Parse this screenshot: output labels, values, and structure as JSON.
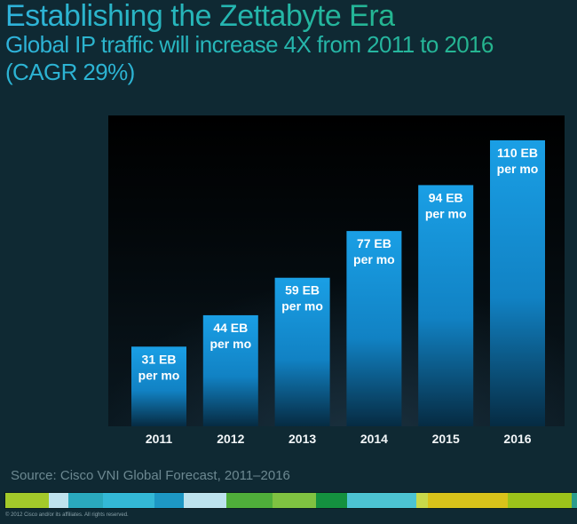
{
  "slide": {
    "title": "Establishing the Zettabyte Era",
    "subtitle_line1": "Global IP traffic will increase 4X from 2011 to 2016",
    "subtitle_line2": "(CAGR 29%)",
    "source": "Source: Cisco VNI Global Forecast, 2011–2016",
    "copyright": "© 2012 Cisco and/or its affiliates. All rights reserved."
  },
  "colors": {
    "background": "#0f2933",
    "bar_top": "#1aa0e6",
    "bar_bottom": "#06304a",
    "label_text": "#ffffff",
    "footer_stripe": [
      "#a3c92a",
      "#bfe3ee",
      "#2aa9bd",
      "#33b8d6",
      "#1d97c4",
      "#bde3ee",
      "#4fae3a",
      "#7fc241",
      "#14913f",
      "#4cc3d2",
      "#c8d84a",
      "#d8c21a",
      "#9cc21a",
      "#2a9c8c"
    ]
  },
  "chart_data": {
    "type": "bar",
    "title": "Global IP traffic",
    "xlabel": "",
    "ylabel": "",
    "unit": "EB per mo",
    "categories": [
      "2011",
      "2012",
      "2013",
      "2014",
      "2015",
      "2016"
    ],
    "values": [
      31,
      44,
      59,
      77,
      94,
      110
    ],
    "data_labels": [
      {
        "line1": "31 EB",
        "line2": "per mo"
      },
      {
        "line1": "44 EB",
        "line2": "per mo"
      },
      {
        "line1": "59 EB",
        "line2": "per mo"
      },
      {
        "line1": "77 EB",
        "line2": "per mo"
      },
      {
        "line1": "94 EB",
        "line2": "per mo"
      },
      {
        "line1": "110 EB",
        "line2": "per mo"
      }
    ],
    "ylim": [
      0,
      110
    ],
    "grid": false,
    "legend": "none"
  }
}
